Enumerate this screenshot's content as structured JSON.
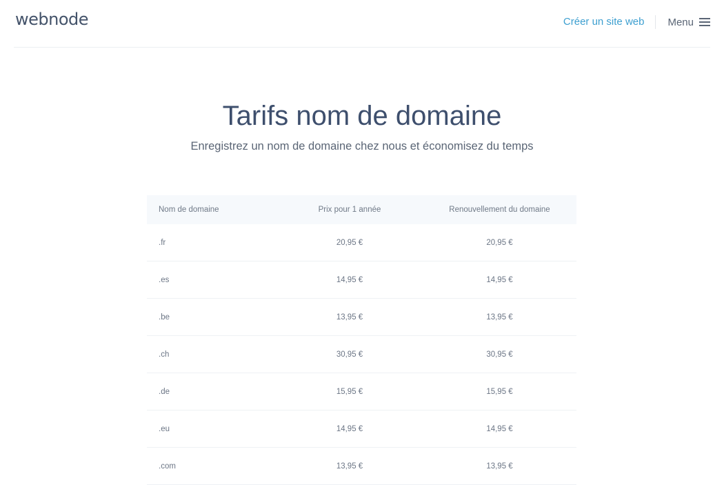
{
  "header": {
    "logo": "webnode",
    "create_label": "Créer un site web",
    "menu_label": "Menu"
  },
  "page": {
    "title": "Tarifs nom de domaine",
    "subtitle": "Enregistrez un nom de domaine chez nous et économisez du temps"
  },
  "table": {
    "columns": [
      "Nom de domaine",
      "Prix pour 1 année",
      "Renouvellement du domaine"
    ],
    "rows": [
      [
        ".fr",
        "20,95 €",
        "20,95 €"
      ],
      [
        ".es",
        "14,95 €",
        "14,95 €"
      ],
      [
        ".be",
        "13,95 €",
        "13,95 €"
      ],
      [
        ".ch",
        "30,95 €",
        "30,95 €"
      ],
      [
        ".de",
        "15,95 €",
        "15,95 €"
      ],
      [
        ".eu",
        "14,95 €",
        "14,95 €"
      ],
      [
        ".com",
        "13,95 €",
        "13,95 €"
      ]
    ]
  }
}
